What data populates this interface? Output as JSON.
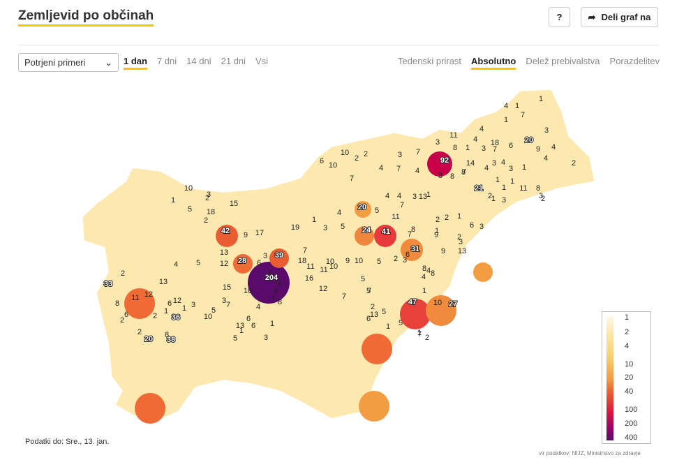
{
  "title": "Zemljevid po občinah",
  "help_label": "?",
  "share_label": "Deli graf na",
  "select": {
    "value": "Potrjeni primeri"
  },
  "periods": [
    "1 dan",
    "7 dni",
    "14 dni",
    "21 dni",
    "Vsi"
  ],
  "active_period": "1 dan",
  "views": [
    "Tedenski prirast",
    "Absolutno",
    "Delež prebivalstva",
    "Porazdelitev"
  ],
  "active_view": "Absolutno",
  "legend": {
    "labels": [
      "1",
      "2",
      "4",
      "10",
      "20",
      "40",
      "100",
      "200",
      "400"
    ]
  },
  "note": "Podatki do: Sre., 13. jan.",
  "source": "vir podatkov: NIJZ, Ministrstvo za zdravje",
  "map_values": [
    "1",
    "4",
    "1",
    "7",
    "1",
    "3",
    "3",
    "11",
    "4",
    "4",
    "18",
    "6",
    "20",
    "7",
    "9",
    "92",
    "8",
    "1",
    "3",
    "4",
    "14",
    "4",
    "8",
    "3",
    "4",
    "2",
    "1",
    "7",
    "6",
    "10",
    "10",
    "2",
    "2",
    "3",
    "7",
    "4",
    "4",
    "7",
    "8",
    "8",
    "7",
    "4",
    "3",
    "1",
    "1",
    "11",
    "8",
    "3",
    "21",
    "1",
    "3",
    "1",
    "2",
    "2",
    "10",
    "2",
    "13",
    "1",
    "4",
    "3",
    "20",
    "5",
    "4",
    "7",
    "15",
    "18",
    "1",
    "5",
    "3",
    "2",
    "24",
    "41",
    "11",
    "2",
    "2",
    "1",
    "6",
    "3",
    "1",
    "4",
    "42",
    "9",
    "17",
    "19",
    "1",
    "3",
    "5",
    "8",
    "9",
    "2",
    "9",
    "13",
    "3",
    "7",
    "6",
    "2",
    "39",
    "7",
    "18",
    "6",
    "10",
    "9",
    "10",
    "5",
    "31",
    "3",
    "8",
    "4",
    "8",
    "28",
    "12",
    "204",
    "3",
    "4",
    "5",
    "13",
    "3",
    "11",
    "11",
    "10",
    "5",
    "7",
    "4",
    "33",
    "2",
    "11",
    "12",
    "13",
    "3",
    "9",
    "16",
    "12",
    "15",
    "10",
    "6",
    "8",
    "7",
    "4",
    "4",
    "7",
    "47",
    "27",
    "1",
    "10",
    "5",
    "6",
    "2",
    "5",
    "1",
    "5",
    "2",
    "1",
    "7",
    "13",
    "12",
    "3",
    "1",
    "1",
    "5",
    "6",
    "36",
    "10",
    "2",
    "6",
    "13",
    "5",
    "6",
    "1",
    "3",
    "1",
    "6",
    "8",
    "2",
    "2",
    "20",
    "38",
    "8"
  ]
}
